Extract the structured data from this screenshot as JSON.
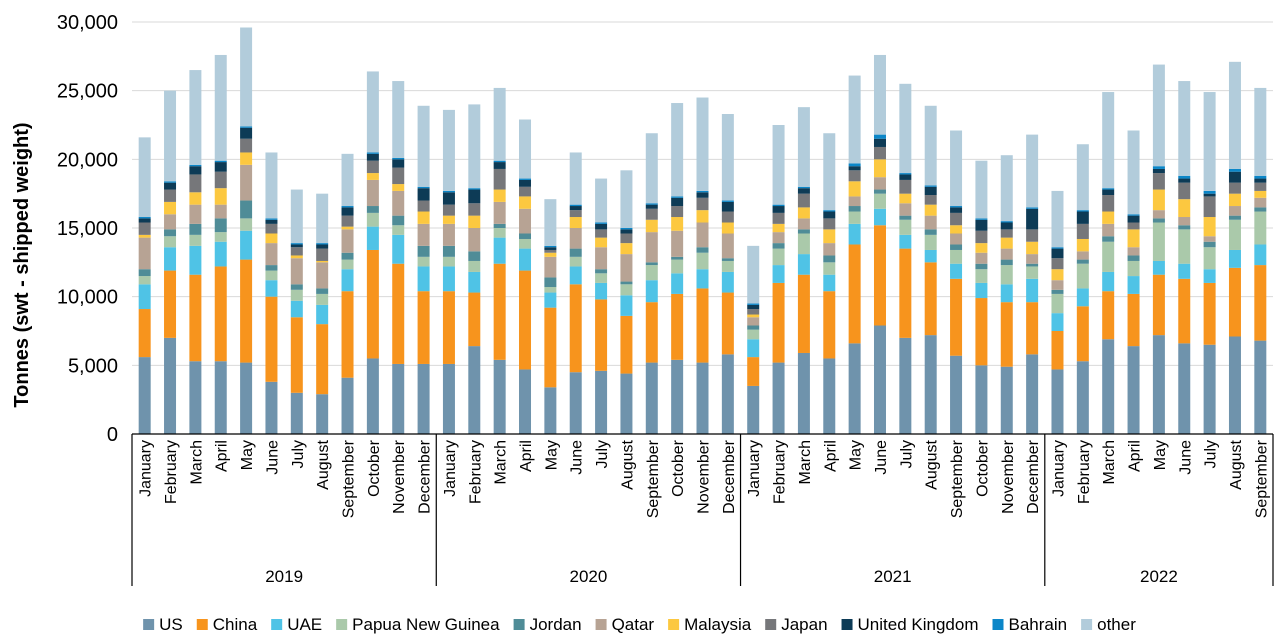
{
  "chart_data": {
    "type": "bar",
    "stacked": true,
    "title": "",
    "xlabel": "",
    "ylabel": "Tonnes (swt - shipped weight)",
    "ylim": [
      0,
      30000
    ],
    "yticks": [
      0,
      5000,
      10000,
      15000,
      20000,
      25000,
      30000
    ],
    "ytick_labels": [
      "0",
      "5,000",
      "10,000",
      "15,000",
      "20,000",
      "25,000",
      "30,000"
    ],
    "grid": true,
    "legend_position": "bottom",
    "groups": [
      {
        "label": "2019",
        "count": 12
      },
      {
        "label": "2020",
        "count": 12
      },
      {
        "label": "2021",
        "count": 12
      },
      {
        "label": "2022",
        "count": 9
      }
    ],
    "categories": [
      "January",
      "February",
      "March",
      "April",
      "May",
      "June",
      "July",
      "August",
      "September",
      "October",
      "November",
      "December",
      "January",
      "February",
      "March",
      "April",
      "May",
      "June",
      "July",
      "August",
      "September",
      "October",
      "November",
      "December",
      "January",
      "February",
      "March",
      "April",
      "May",
      "June",
      "July",
      "August",
      "September",
      "October",
      "November",
      "December",
      "January",
      "February",
      "March",
      "April",
      "May",
      "June",
      "July",
      "August",
      "September"
    ],
    "series": [
      {
        "name": "US",
        "color": "#6f93ac",
        "values": [
          5600,
          7000,
          5300,
          5300,
          5200,
          3800,
          3000,
          2900,
          4100,
          5500,
          5100,
          5100,
          5100,
          6400,
          5400,
          4700,
          3400,
          4500,
          4600,
          4400,
          5200,
          5400,
          5200,
          5800,
          3500,
          5200,
          5900,
          5500,
          6600,
          7900,
          7000,
          7200,
          5700,
          5000,
          4900,
          5800,
          4700,
          5300,
          6900,
          6400,
          7200,
          6600,
          6500,
          7100,
          6800
        ]
      },
      {
        "name": "China",
        "color": "#f7941d",
        "values": [
          3500,
          4900,
          6300,
          6900,
          7500,
          6200,
          5500,
          5100,
          6300,
          7900,
          7300,
          5300,
          5300,
          3900,
          7000,
          7200,
          5800,
          6400,
          5200,
          4200,
          4400,
          4800,
          5400,
          4500,
          2100,
          5800,
          5700,
          4900,
          7200,
          7300,
          6500,
          5300,
          5600,
          4900,
          4700,
          3800,
          2800,
          4000,
          3500,
          3800,
          4400,
          4700,
          4500,
          5000,
          5500
        ]
      },
      {
        "name": "UAE",
        "color": "#4fc3e6",
        "values": [
          1800,
          1700,
          2100,
          1800,
          2100,
          1200,
          1200,
          1400,
          1600,
          1700,
          2100,
          1800,
          1800,
          1500,
          1900,
          1600,
          1100,
          1300,
          1200,
          1500,
          1600,
          1500,
          1400,
          1500,
          1300,
          1300,
          1500,
          1200,
          1500,
          1200,
          1000,
          900,
          1100,
          1100,
          1300,
          1700,
          1300,
          1300,
          1400,
          1300,
          1000,
          1100,
          1000,
          1300,
          1500
        ]
      },
      {
        "name": "Papua New Guinea",
        "color": "#aac9aa",
        "values": [
          600,
          800,
          800,
          700,
          900,
          700,
          800,
          800,
          700,
          1000,
          700,
          700,
          700,
          800,
          700,
          700,
          400,
          700,
          700,
          800,
          1100,
          1000,
          1200,
          800,
          700,
          1200,
          1500,
          900,
          900,
          1100,
          1100,
          1100,
          1000,
          1000,
          1400,
          900,
          1400,
          1800,
          2200,
          1100,
          2800,
          2500,
          1600,
          2200,
          2400
        ]
      },
      {
        "name": "Jordan",
        "color": "#4f8c97",
        "values": [
          500,
          500,
          800,
          1000,
          1300,
          400,
          400,
          400,
          500,
          500,
          700,
          800,
          800,
          700,
          300,
          400,
          700,
          600,
          300,
          200,
          200,
          200,
          400,
          200,
          300,
          400,
          300,
          500,
          400,
          300,
          300,
          400,
          400,
          400,
          400,
          200,
          300,
          300,
          400,
          400,
          300,
          300,
          400,
          300,
          300
        ]
      },
      {
        "name": "Qatar",
        "color": "#b7a394",
        "values": [
          2300,
          1100,
          1400,
          1000,
          2600,
          1600,
          1900,
          1900,
          1700,
          1900,
          1800,
          1600,
          1600,
          1700,
          1600,
          1800,
          1500,
          1500,
          1600,
          2000,
          2200,
          1900,
          1800,
          1800,
          600,
          800,
          800,
          900,
          700,
          900,
          900,
          1000,
          800,
          800,
          800,
          700,
          700,
          600,
          900,
          600,
          600,
          600,
          400,
          700,
          700
        ]
      },
      {
        "name": "Malaysia",
        "color": "#fcc840",
        "values": [
          200,
          900,
          900,
          1200,
          900,
          700,
          200,
          100,
          200,
          500,
          500,
          900,
          600,
          900,
          900,
          900,
          300,
          800,
          700,
          800,
          900,
          1000,
          900,
          800,
          200,
          600,
          800,
          1000,
          1100,
          1300,
          700,
          800,
          600,
          700,
          800,
          900,
          800,
          900,
          900,
          1300,
          1500,
          1300,
          1400,
          900,
          500
        ]
      },
      {
        "name": "Japan",
        "color": "#76777a",
        "values": [
          900,
          900,
          1300,
          1200,
          1000,
          700,
          600,
          900,
          800,
          900,
          1200,
          800,
          800,
          900,
          1500,
          700,
          200,
          500,
          600,
          700,
          800,
          800,
          900,
          800,
          400,
          800,
          1000,
          800,
          800,
          900,
          1000,
          700,
          900,
          900,
          600,
          900,
          800,
          1100,
          1200,
          500,
          1200,
          1200,
          1500,
          800,
          600
        ]
      },
      {
        "name": "United Kingdom",
        "color": "#0d3b56",
        "values": [
          300,
          500,
          600,
          700,
          800,
          300,
          200,
          300,
          600,
          500,
          600,
          900,
          900,
          1000,
          500,
          500,
          200,
          300,
          400,
          300,
          300,
          600,
          400,
          700,
          300,
          500,
          400,
          500,
          300,
          600,
          400,
          600,
          400,
          800,
          500,
          1500,
          700,
          900,
          400,
          500,
          300,
          300,
          200,
          800,
          300
        ]
      },
      {
        "name": "Bahrain",
        "color": "#0b86c8",
        "values": [
          100,
          100,
          100,
          100,
          100,
          100,
          100,
          100,
          100,
          100,
          100,
          100,
          100,
          100,
          100,
          100,
          100,
          100,
          100,
          100,
          100,
          100,
          100,
          100,
          100,
          100,
          100,
          100,
          200,
          300,
          100,
          100,
          100,
          100,
          100,
          100,
          100,
          100,
          100,
          100,
          200,
          200,
          200,
          200,
          200
        ]
      },
      {
        "name": "other",
        "color": "#b2ccdb",
        "values": [
          5800,
          6600,
          6900,
          7700,
          7200,
          4800,
          3900,
          3600,
          3800,
          5900,
          5600,
          5900,
          5900,
          6100,
          5300,
          4300,
          3400,
          3800,
          3200,
          4200,
          5100,
          6800,
          6800,
          6300,
          4200,
          5800,
          5800,
          5600,
          6400,
          5800,
          6500,
          5800,
          5500,
          4200,
          4800,
          5300,
          4100,
          4800,
          7000,
          6100,
          7400,
          6900,
          7200,
          7800,
          6400
        ]
      }
    ]
  }
}
